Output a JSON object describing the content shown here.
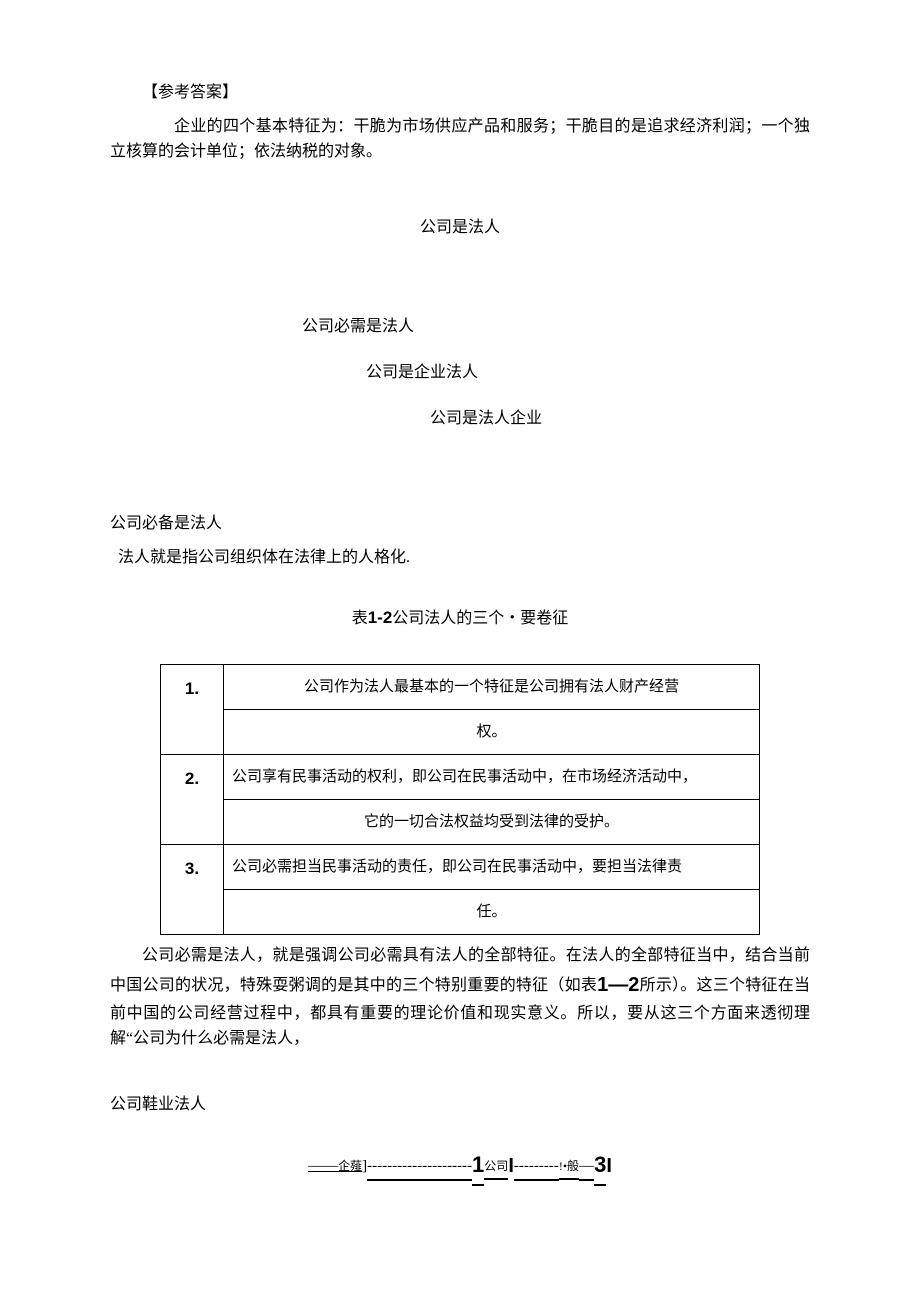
{
  "answer_heading": "【参考答案】",
  "answer_body": "企业的四个基本特征为：干脆为市场供应产品和服务；干脆目的是追求经济利润；一个独立核算的会计单位；依法纳税的对象。",
  "section_title": "公司是法人",
  "sub_titles": {
    "a": "公司必需是法人",
    "b": "公司是企业法人",
    "c": "公司是法人企业"
  },
  "point_heading": "公司必备是法人",
  "point_body": "法人就是指公司组织体在法律上的人格化.",
  "table_caption_prefix": "表",
  "table_caption_num": "1-2",
  "table_caption_suffix": "公司法人的三个・要卷征",
  "table": {
    "rows": [
      {
        "idx": "1.",
        "line1": "公司作为法人最基本的一个特征是公司拥有法人财产经营",
        "line2": "权。"
      },
      {
        "idx": "2.",
        "line1": "公司享有民事活动的权利，即公司在民事活动中，在市场经济活动中，",
        "line2": "它的一切合法权益均受到法律的受护。"
      },
      {
        "idx": "3.",
        "line1": "公司必需担当民事活动的责任，即公司在民事活动中，要担当法律责",
        "line2": "任。"
      }
    ]
  },
  "explain_para_1": "公司必需是法人，就是强调公司必需具有法人的全部特征。在法人的全部特征当中，结合当前中国公司的状况，特殊耍粥调的是其中的三个特别重要的特征（如表",
  "explain_para_num": "1—2",
  "explain_para_2": "所示）。这三个特征在当前中国的公司经营过程中，都具有重要的理论价值和现实意义。所以，要从这三个方面来透彻理解“公司为什么必需是法人，",
  "point2_heading": "公司鞋业法人",
  "footer": {
    "lead_dash": "——",
    "word_qi": "企薤",
    "bracket_close": "]",
    "mid_dashes": "---------------------",
    "num1": "1",
    "word_gs": "公司",
    "pipe1": "I",
    "mid_dashes2": "---------",
    "excl": "!•",
    "word_ban": "般",
    "dash2": "—",
    "num3": "3",
    "pipe2": "I"
  }
}
